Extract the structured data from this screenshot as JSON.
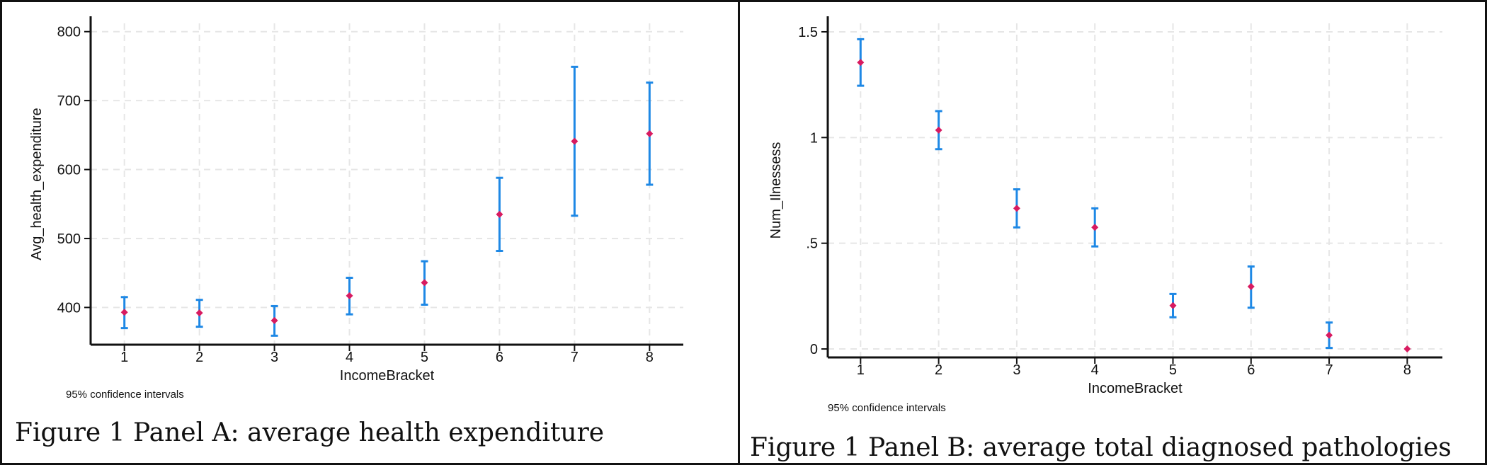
{
  "colors": {
    "point": "#d81b60",
    "ci": "#1e88e5",
    "grid": "#e6e6e6",
    "axis": "#111111"
  },
  "chart_data": [
    {
      "type": "scatter",
      "xlabel": "IncomeBracket",
      "ylabel": "Avg_health_expenditure",
      "note": "95% confidence intervals",
      "caption": "Figure 1 Panel A: average health expenditure",
      "x": [
        1,
        2,
        3,
        4,
        5,
        6,
        7,
        8
      ],
      "y": [
        393,
        392,
        381,
        417,
        436,
        535,
        641,
        652
      ],
      "ci_low": [
        370,
        372,
        359,
        390,
        404,
        482,
        533,
        578
      ],
      "ci_high": [
        415,
        411,
        402,
        443,
        467,
        588,
        749,
        726
      ],
      "xlim": [
        0.55,
        8.45
      ],
      "ylim": [
        346,
        812
      ],
      "yticks": [
        400,
        500,
        600,
        700,
        800
      ],
      "ytick_labels": [
        "400",
        "500",
        "600",
        "700",
        "800"
      ],
      "xtick_labels": [
        "1",
        "2",
        "3",
        "4",
        "5",
        "6",
        "7",
        "8"
      ],
      "grid": true
    },
    {
      "type": "scatter",
      "xlabel": "IncomeBracket",
      "ylabel": "Num_Ilnessess",
      "note": "95% confidence intervals",
      "caption": "Figure 1 Panel B: average total diagnosed pathologies",
      "x": [
        1,
        2,
        3,
        4,
        5,
        6,
        7,
        8
      ],
      "y": [
        1.355,
        1.035,
        0.665,
        0.575,
        0.205,
        0.295,
        0.065,
        0.0
      ],
      "ci_low": [
        1.245,
        0.945,
        0.575,
        0.485,
        0.15,
        0.195,
        0.005,
        0.0
      ],
      "ci_high": [
        1.465,
        1.125,
        0.755,
        0.665,
        0.26,
        0.39,
        0.125,
        0.0
      ],
      "xlim": [
        0.58,
        8.45
      ],
      "ylim": [
        -0.04,
        1.54
      ],
      "yticks": [
        0,
        0.5,
        1,
        1.5
      ],
      "ytick_labels": [
        "0",
        ".5",
        "1",
        "1.5"
      ],
      "xtick_labels": [
        "1",
        "2",
        "3",
        "4",
        "5",
        "6",
        "7",
        "8"
      ],
      "grid": true
    }
  ]
}
